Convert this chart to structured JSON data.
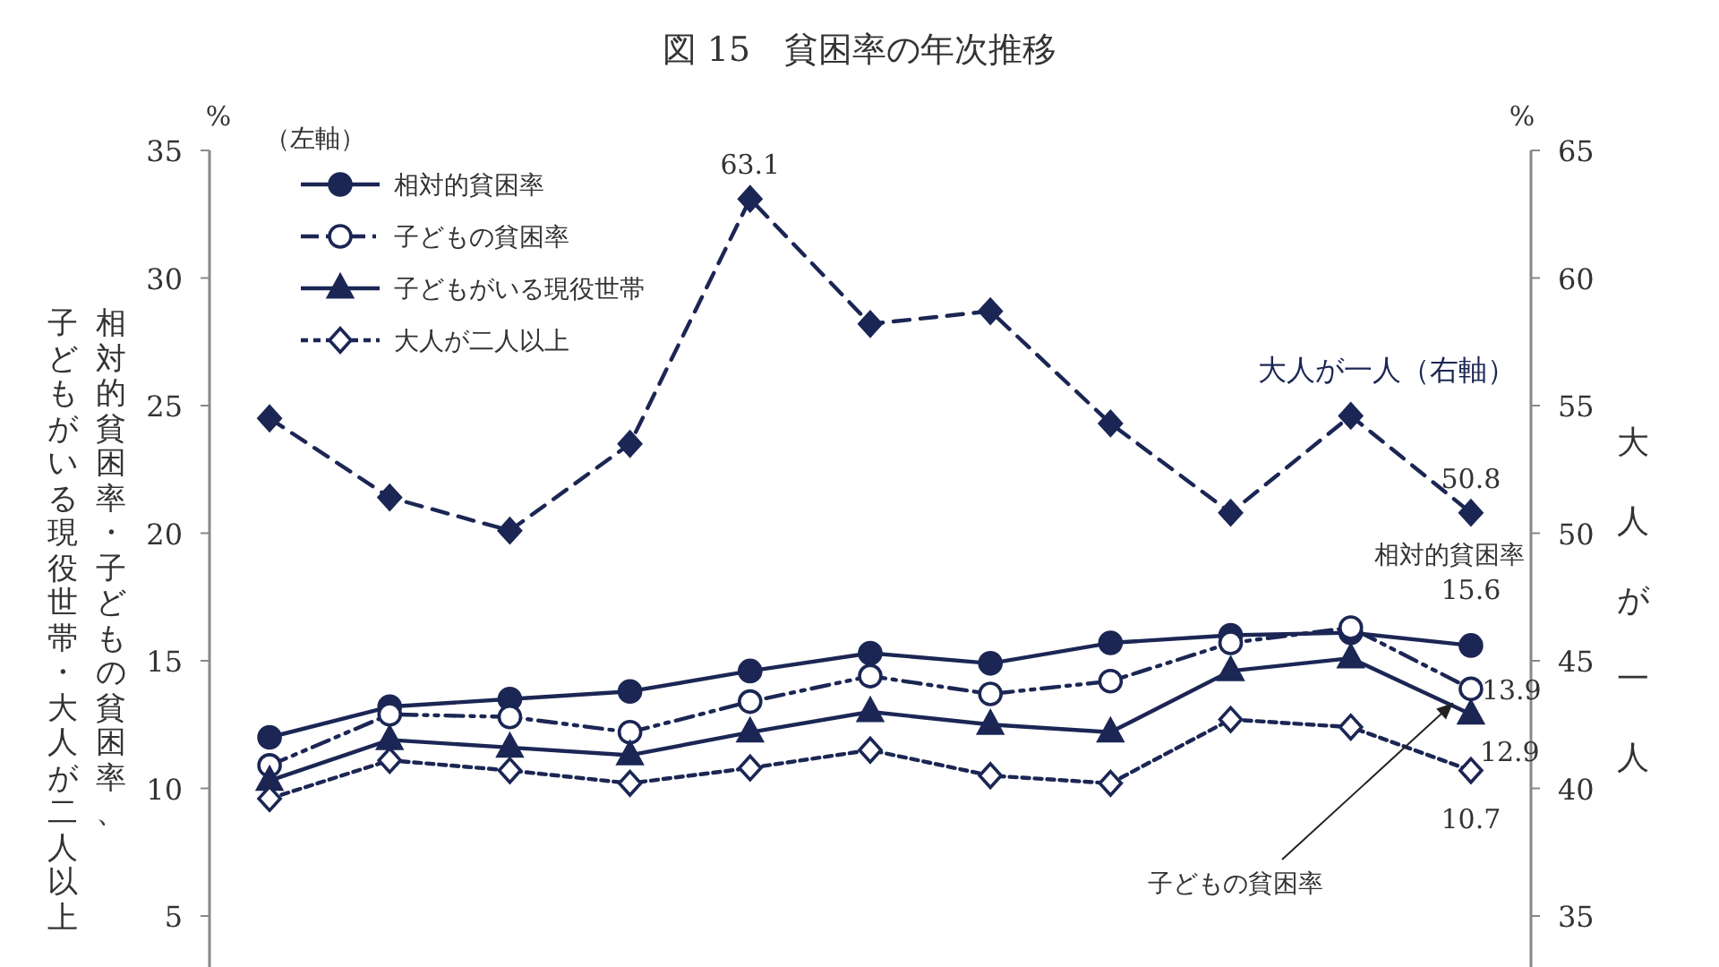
{
  "chart_data": {
    "type": "line",
    "title": "図 15　貧困率の年次推移",
    "ylabel": "相対的貧困率・子どもの貧困率、子どもがいる現役世帯・大人が二人以上",
    "y2label": "大人が一人",
    "legend_title": "（左軸）",
    "categories": [
      null,
      null,
      null,
      null,
      null,
      null,
      null,
      null,
      null,
      null,
      null
    ],
    "ylim": [
      3,
      35
    ],
    "yticks": [
      5,
      10,
      15,
      20,
      25,
      30,
      35
    ],
    "y2lim": [
      33,
      65
    ],
    "y2ticks": [
      35,
      40,
      45,
      50,
      55,
      60,
      65
    ],
    "grid": false,
    "legend": "top left",
    "annotations": [
      "%",
      "%",
      "相対的貧困率",
      "子どもの貧困率"
    ],
    "series": [
      {
        "name": "相対的貧困率",
        "color": "#1b2654",
        "marker": "circle",
        "line_style": "solid",
        "values": [
          12.0,
          13.2,
          13.5,
          13.8,
          14.6,
          15.3,
          14.9,
          15.7,
          16.0,
          16.1,
          15.6
        ],
        "value_labels": [
          null,
          null,
          null,
          null,
          null,
          null,
          null,
          null,
          null,
          null,
          "15.6"
        ]
      },
      {
        "name": "子どもの貧困率",
        "color": "#1b2654",
        "marker": "circle-open",
        "line_style": "dashdot",
        "values": [
          10.9,
          12.9,
          12.8,
          12.2,
          13.4,
          14.4,
          13.7,
          14.2,
          15.7,
          16.3,
          13.9
        ],
        "value_labels": [
          null,
          null,
          null,
          null,
          null,
          null,
          null,
          null,
          null,
          null,
          "13.9"
        ]
      },
      {
        "name": "子どもがいる現役世帯",
        "color": "#1b2654",
        "marker": "triangle",
        "line_style": "solid",
        "values": [
          10.3,
          11.9,
          11.6,
          11.3,
          12.2,
          13.0,
          12.5,
          12.2,
          14.6,
          15.1,
          12.9
        ],
        "value_labels": [
          null,
          null,
          null,
          null,
          null,
          null,
          null,
          null,
          null,
          null,
          "12.9"
        ]
      },
      {
        "name": "大人が二人以上",
        "color": "#1b2654",
        "marker": "diamond-open",
        "line_style": "dotted",
        "values": [
          9.6,
          11.1,
          10.7,
          10.2,
          10.8,
          11.5,
          10.5,
          10.2,
          12.7,
          12.4,
          10.7
        ],
        "value_labels": [
          null,
          null,
          null,
          null,
          null,
          null,
          null,
          null,
          null,
          null,
          "10.7"
        ]
      },
      {
        "name": "大人が一人（右軸）",
        "axis": "y2",
        "color": "#1b2654",
        "marker": "diamond",
        "line_style": "dashed",
        "values": [
          54.5,
          51.4,
          50.1,
          53.5,
          63.1,
          58.2,
          58.7,
          54.3,
          50.8,
          54.6,
          50.8
        ],
        "value_labels": [
          null,
          null,
          null,
          null,
          "63.1",
          null,
          null,
          null,
          null,
          null,
          "50.8"
        ]
      }
    ]
  }
}
